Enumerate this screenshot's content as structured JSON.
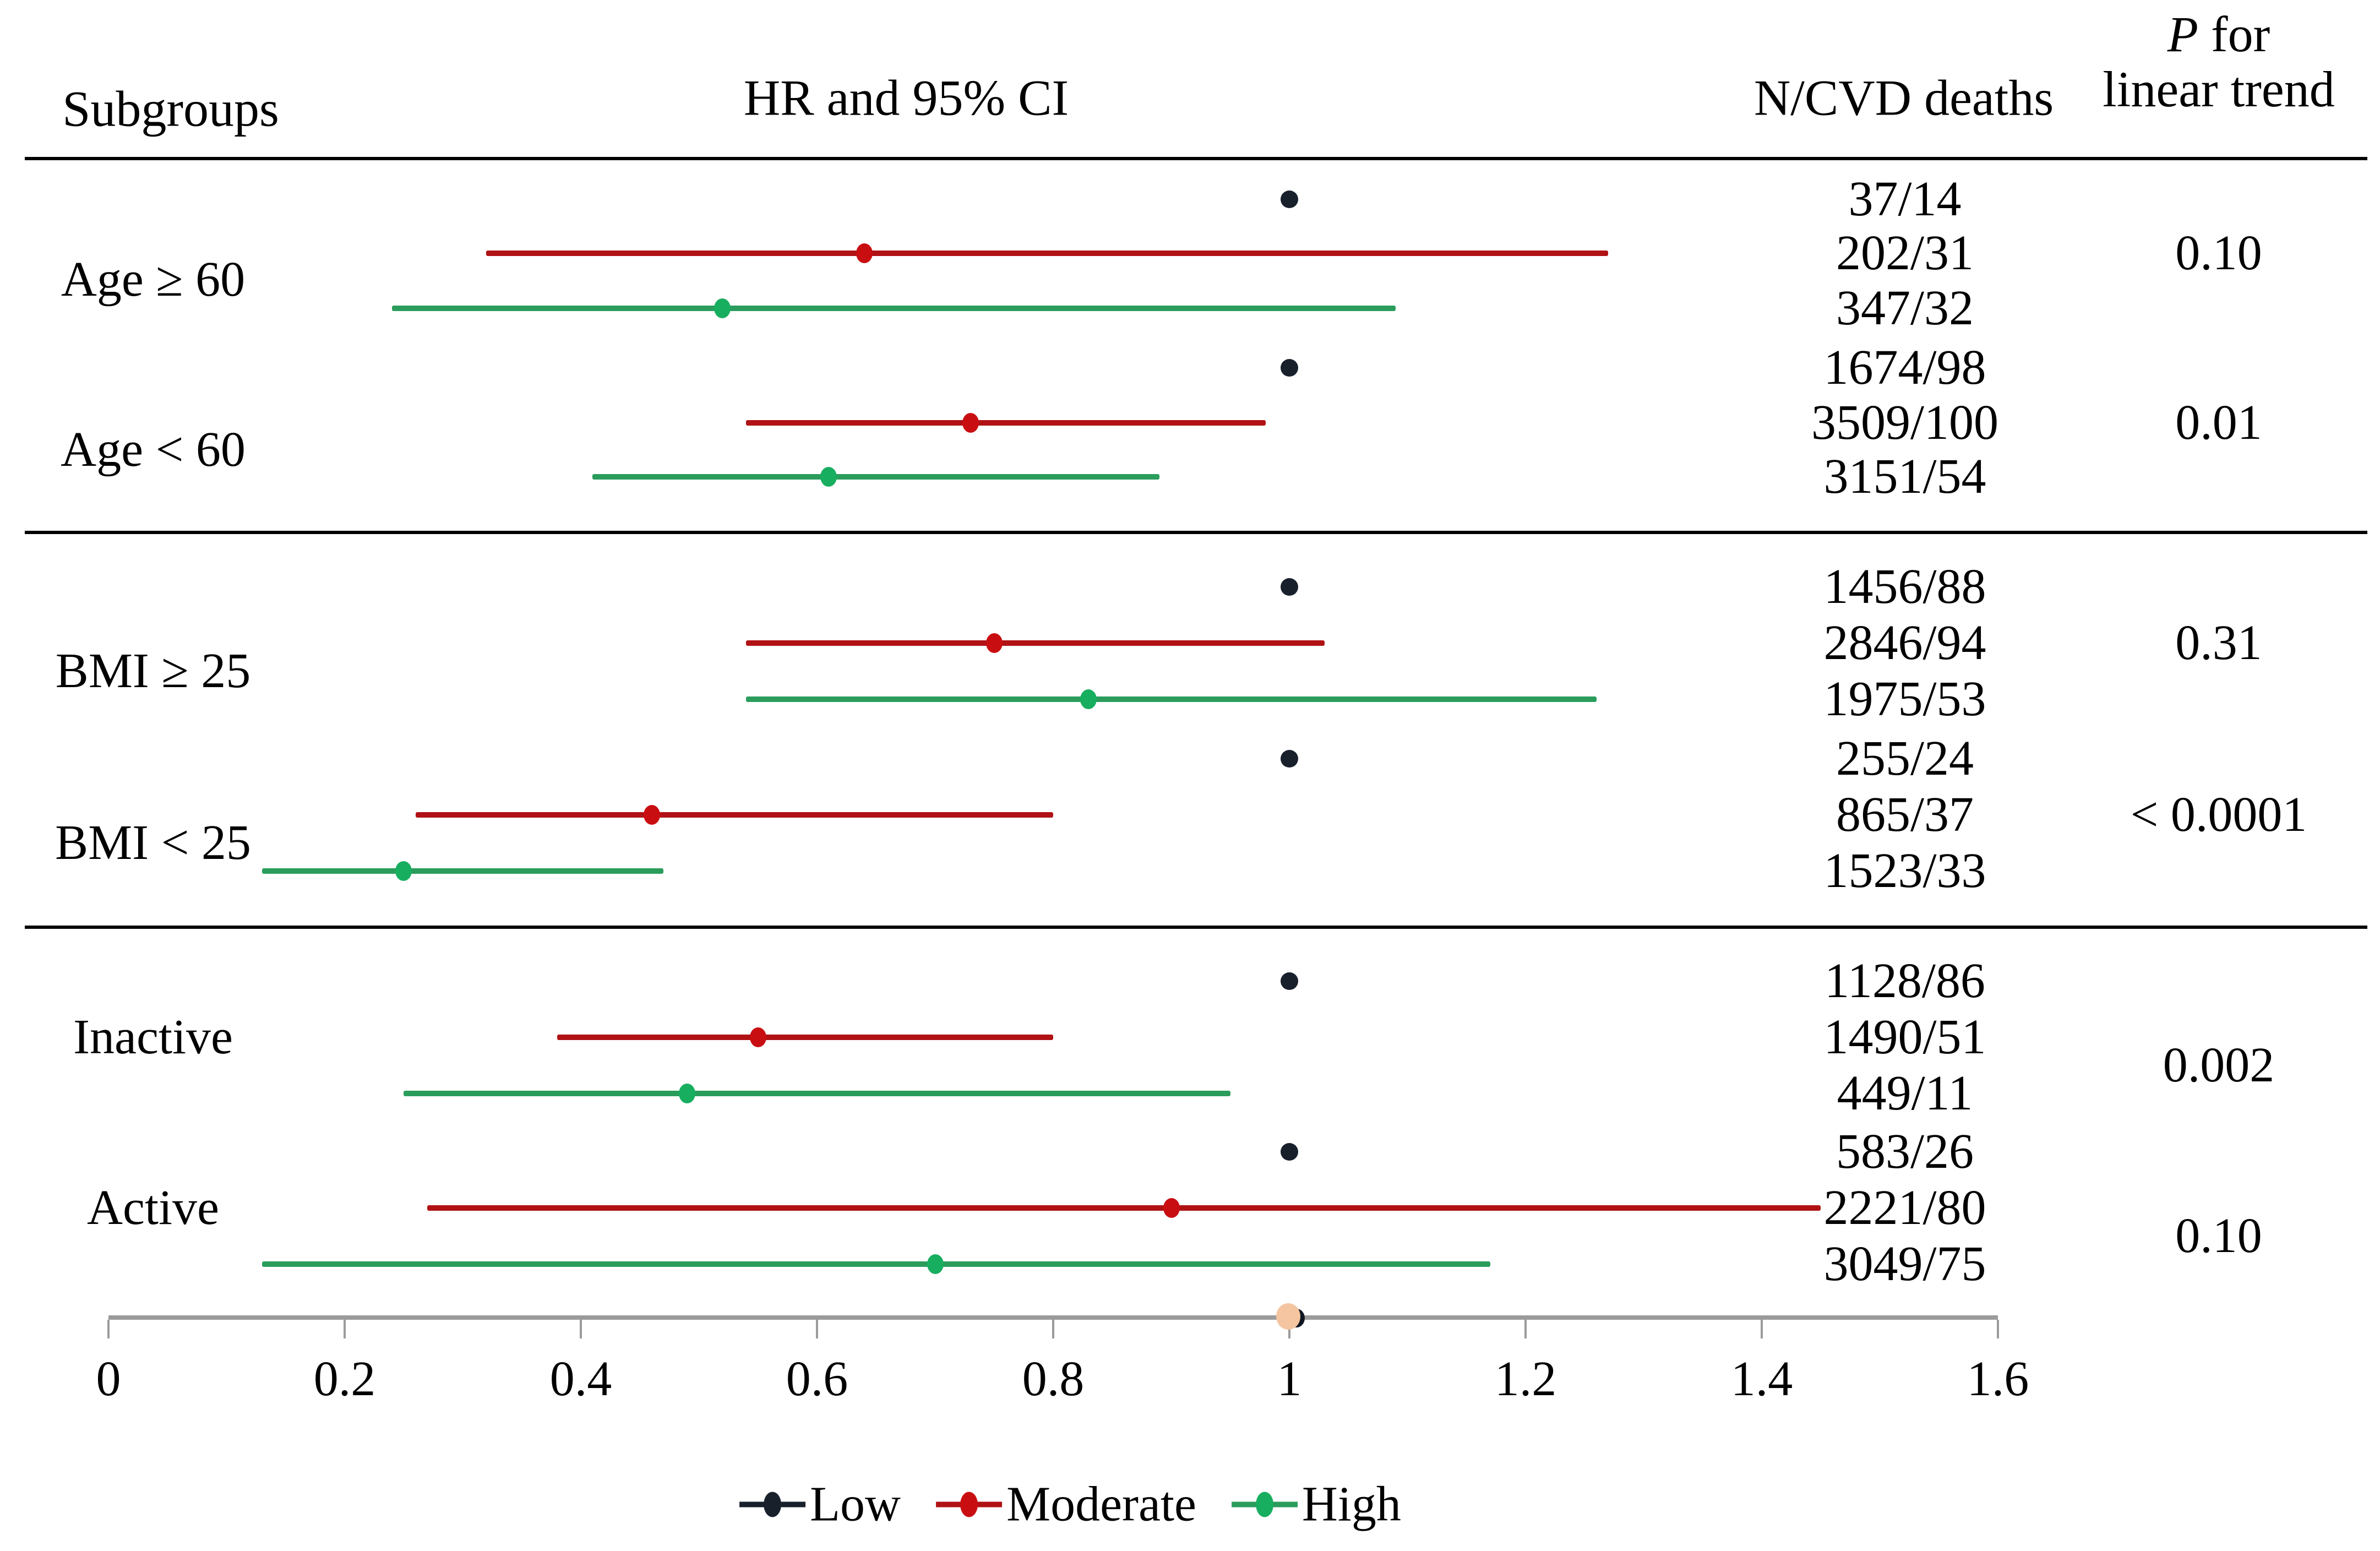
{
  "header": {
    "subgroups": "Subgroups",
    "hr_ci": "HR and 95% CI",
    "n_cvd": "N/CVD deaths",
    "p_line1_italic": "P",
    "p_line1_rest": " for",
    "p_line2": "linear trend"
  },
  "chart_data": {
    "type": "forest",
    "title": "HR and 95% CI by subgroup",
    "x_axis": {
      "min": 0,
      "max": 1.6,
      "step": 0.2,
      "tick_labels": [
        "0",
        "0.2",
        "0.4",
        "0.6",
        "0.8",
        "1",
        "1.2",
        "1.4",
        "1.6"
      ]
    },
    "colors": {
      "low_dot": "#18202C",
      "moderate_line": "#B01215",
      "moderate_dot": "#C90E12",
      "high_line": "#2A9D5C",
      "high_dot": "#18AE5F",
      "axis": "#9B9B9B",
      "separator": "#000000"
    },
    "axis_marker": {
      "value": 1.0,
      "color": "#F4C5A0",
      "shadow_color": "#111722"
    },
    "groups": [
      {
        "label": "Age ≥ 60",
        "p": "0.10",
        "rows": [
          {
            "series": "Low",
            "hr": 1.0,
            "lo": null,
            "hi": null,
            "n": "37/14"
          },
          {
            "series": "Moderate",
            "hr": 0.64,
            "lo": 0.32,
            "hi": 1.27,
            "n": "202/31"
          },
          {
            "series": "High",
            "hr": 0.52,
            "lo": 0.24,
            "hi": 1.09,
            "n": "347/32"
          }
        ]
      },
      {
        "label": "Age < 60",
        "p": "0.01",
        "rows": [
          {
            "series": "Low",
            "hr": 1.0,
            "lo": null,
            "hi": null,
            "n": "1674/98"
          },
          {
            "series": "Moderate",
            "hr": 0.73,
            "lo": 0.54,
            "hi": 0.98,
            "n": "3509/100"
          },
          {
            "series": "High",
            "hr": 0.61,
            "lo": 0.41,
            "hi": 0.89,
            "n": "3151/54"
          }
        ]
      },
      {
        "label": "BMI ≥ 25",
        "p": "0.31",
        "rows": [
          {
            "series": "Low",
            "hr": 1.0,
            "lo": null,
            "hi": null,
            "n": "1456/88"
          },
          {
            "series": "Moderate",
            "hr": 0.75,
            "lo": 0.54,
            "hi": 1.03,
            "n": "2846/94"
          },
          {
            "series": "High",
            "hr": 0.83,
            "lo": 0.54,
            "hi": 1.26,
            "n": "1975/53"
          }
        ]
      },
      {
        "label": "BMI < 25",
        "p": "< 0.0001",
        "rows": [
          {
            "series": "Low",
            "hr": 1.0,
            "lo": null,
            "hi": null,
            "n": "255/24"
          },
          {
            "series": "Moderate",
            "hr": 0.46,
            "lo": 0.26,
            "hi": 0.8,
            "n": "865/37"
          },
          {
            "series": "High",
            "hr": 0.25,
            "lo": 0.13,
            "hi": 0.47,
            "n": "1523/33"
          }
        ]
      },
      {
        "label": "Inactive",
        "p": "0.002",
        "rows": [
          {
            "series": "Low",
            "hr": 1.0,
            "lo": null,
            "hi": null,
            "n": "1128/86"
          },
          {
            "series": "Moderate",
            "hr": 0.55,
            "lo": 0.38,
            "hi": 0.8,
            "n": "1490/51"
          },
          {
            "series": "High",
            "hr": 0.49,
            "lo": 0.25,
            "hi": 0.95,
            "n": "449/11"
          }
        ]
      },
      {
        "label": "Active",
        "p": "0.10",
        "rows": [
          {
            "series": "Low",
            "hr": 1.0,
            "lo": null,
            "hi": null,
            "n": "583/26"
          },
          {
            "series": "Moderate",
            "hr": 0.9,
            "lo": 0.27,
            "hi": 1.45,
            "n": "2221/80"
          },
          {
            "series": "High",
            "hr": 0.7,
            "lo": 0.13,
            "hi": 1.17,
            "n": "3049/75"
          }
        ]
      }
    ],
    "legend": [
      {
        "label": "Low",
        "line_color": "#18202C",
        "dot_color": "#18202C"
      },
      {
        "label": "Moderate",
        "line_color": "#B01215",
        "dot_color": "#C90E12"
      },
      {
        "label": "High",
        "line_color": "#2A9D5C",
        "dot_color": "#18AE5F"
      }
    ]
  }
}
